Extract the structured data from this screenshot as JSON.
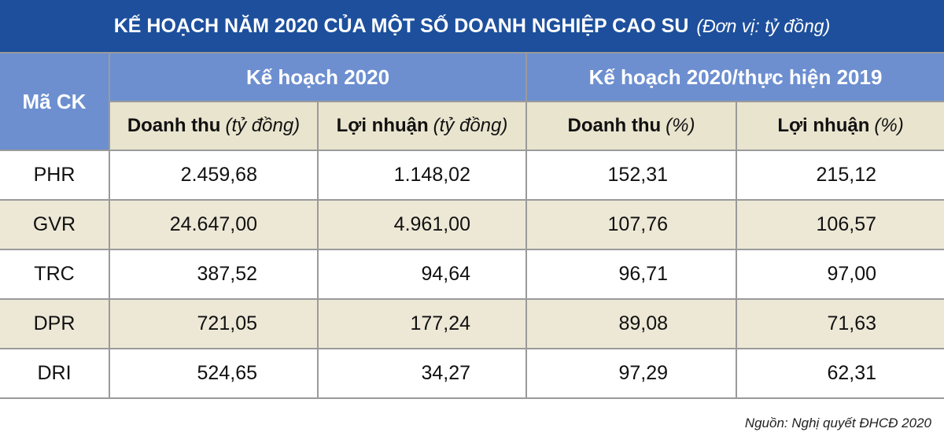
{
  "title": {
    "text": "KẾ HOẠCH NĂM 2020 CỦA MỘT SỐ DOANH NGHIỆP CAO SU",
    "unit": "(Đơn vị: tỷ đồng)"
  },
  "table": {
    "header": {
      "code": "Mã CK",
      "groups": [
        "Kế hoạch 2020",
        "Kế hoạch 2020/thực hiện 2019"
      ],
      "columns": [
        {
          "label": "Doanh thu",
          "unit": "(tỷ đồng)"
        },
        {
          "label": "Lợi nhuận",
          "unit": "(tỷ đồng)"
        },
        {
          "label": "Doanh thu",
          "unit": "(%)"
        },
        {
          "label": "Lợi nhuận",
          "unit": "(%)"
        }
      ]
    },
    "rows": [
      [
        "PHR",
        "2.459,68",
        "1.148,02",
        "152,31",
        "215,12"
      ],
      [
        "GVR",
        "24.647,00",
        "4.961,00",
        "107,76",
        "106,57"
      ],
      [
        "TRC",
        "387,52",
        "94,64",
        "96,71",
        "97,00"
      ],
      [
        "DPR",
        "721,05",
        "177,24",
        "89,08",
        "71,63"
      ],
      [
        "DRI",
        "524,65",
        "34,27",
        "97,29",
        "62,31"
      ]
    ]
  },
  "source": "Nguồn: Nghị quyết ĐHCĐ 2020"
}
